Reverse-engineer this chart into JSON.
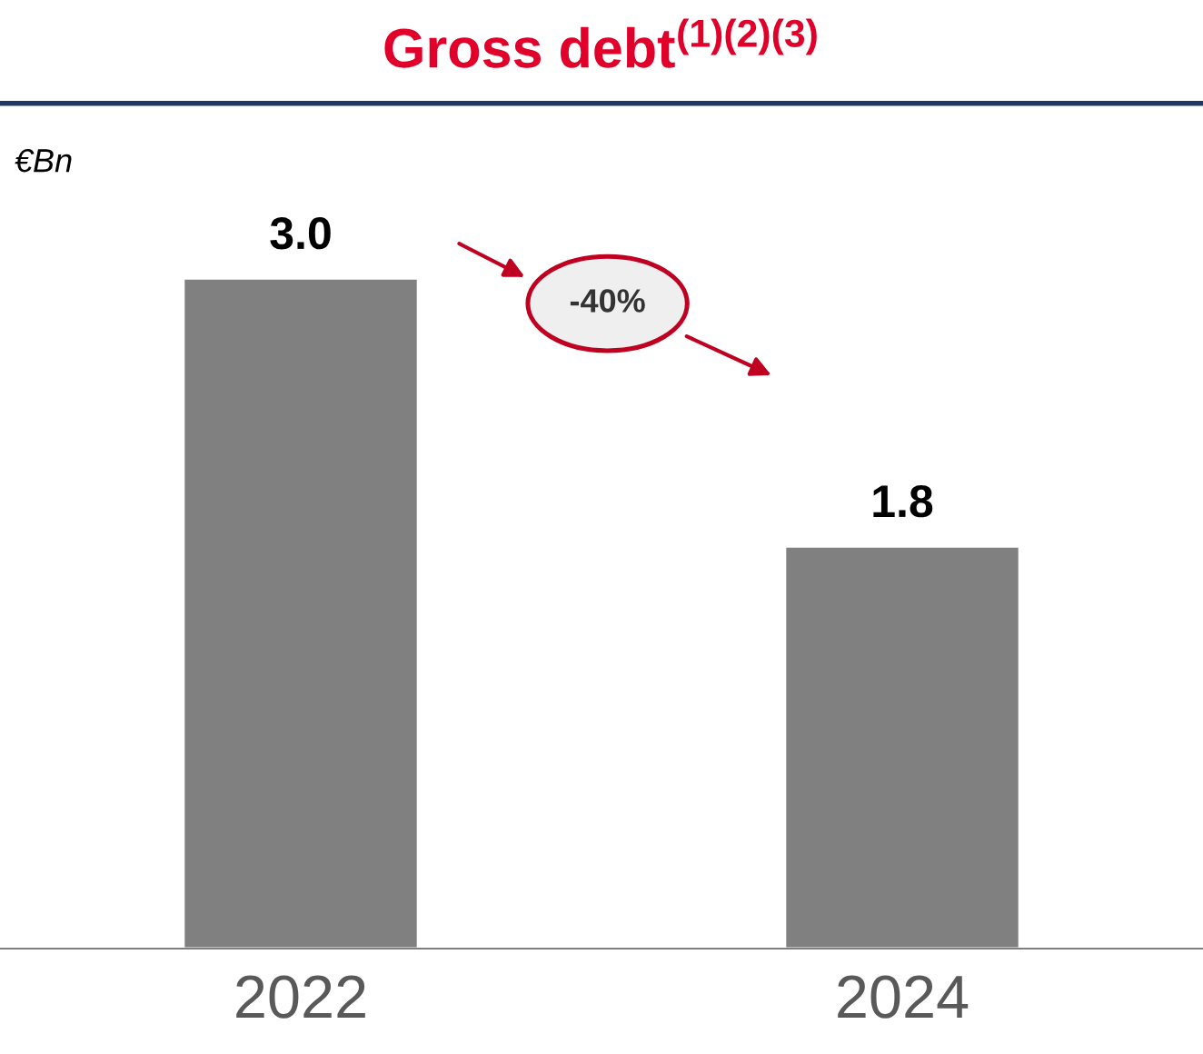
{
  "chart_data": {
    "type": "bar",
    "title": "Gross debt$^{(1)(2)(3)}$",
    "ylabel": "€Bn",
    "categories": [
      "2022",
      "2024"
    ],
    "values": [
      3.0,
      1.8
    ],
    "value_labels": [
      "3.0",
      "1.8"
    ],
    "color": "#808080",
    "annotations": [
      "-40%"
    ],
    "grid": false,
    "legend": false
  }
}
